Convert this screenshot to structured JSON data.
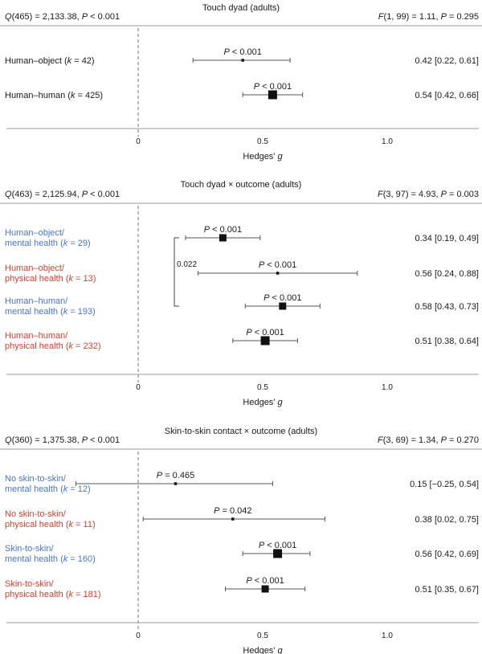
{
  "colors": {
    "black": "#1a1a1a",
    "blue": "#4a74c8",
    "red": "#d23f2e",
    "rule": "#999999",
    "whisker": "#555555"
  },
  "chart_data": [
    {
      "type": "forest",
      "title": "Touch dyad (adults)",
      "left_stat": [
        "Q(465) = 2,133.38, P < 0.001"
      ],
      "right_stat": [
        "F(1, 99) = 1.11, P = 0.295"
      ],
      "xlabel": "Hedges' g",
      "xlim": [
        -0.55,
        1.38
      ],
      "ticks": [
        0,
        0.5,
        1.0
      ],
      "tick_labels": [
        "0",
        "0.5",
        "1.0"
      ],
      "rows": [
        {
          "label": [
            "Human–object (k = 42)"
          ],
          "color": "black",
          "estimate": 0.42,
          "lower": 0.22,
          "upper": 0.61,
          "p": "P < 0.001",
          "ci_text": "0.42 [0.22, 0.61]",
          "marker": "small"
        },
        {
          "label": [
            "Human–human (k = 425)"
          ],
          "color": "black",
          "estimate": 0.54,
          "lower": 0.42,
          "upper": 0.66,
          "p": "P < 0.001",
          "ci_text": "0.54 [0.42, 0.66]",
          "marker": "large"
        }
      ]
    },
    {
      "type": "forest",
      "title": "Touch dyad × outcome (adults)",
      "left_stat": [
        "Q(463) = 2,125.94, P < 0.001"
      ],
      "right_stat": [
        "F(3, 97) = 4.93, P = 0.003"
      ],
      "xlabel": "Hedges' g",
      "xlim": [
        -0.55,
        1.38
      ],
      "ticks": [
        0,
        0.5,
        1.0
      ],
      "tick_labels": [
        "0",
        "0.5",
        "1.0"
      ],
      "bracket_label": "0.022",
      "rows": [
        {
          "label": [
            "Human–object/",
            "mental health (k = 29)"
          ],
          "color": "blue",
          "estimate": 0.34,
          "lower": 0.19,
          "upper": 0.49,
          "p": "P < 0.001",
          "ci_text": "0.34 [0.19, 0.49]",
          "marker": "medium"
        },
        {
          "label": [
            "Human–object/",
            "physical health (k = 13)"
          ],
          "color": "red",
          "estimate": 0.56,
          "lower": 0.24,
          "upper": 0.88,
          "p": "P < 0.001",
          "ci_text": "0.56 [0.24, 0.88]",
          "marker": "small"
        },
        {
          "label": [
            "Human–human/",
            "mental health (k = 193)"
          ],
          "color": "blue",
          "estimate": 0.58,
          "lower": 0.43,
          "upper": 0.73,
          "p": "P < 0.001",
          "ci_text": "0.58 [0.43, 0.73]",
          "marker": "medium"
        },
        {
          "label": [
            "Human–human/",
            "physical health (k = 232)"
          ],
          "color": "red",
          "estimate": 0.51,
          "lower": 0.38,
          "upper": 0.64,
          "p": "P < 0.001",
          "ci_text": "0.51 [0.38, 0.64]",
          "marker": "large"
        }
      ]
    },
    {
      "type": "forest",
      "title": "Skin-to-skin contact × outcome (adults)",
      "left_stat": [
        "Q(360) = 1,375.38, P < 0.001"
      ],
      "right_stat": [
        "F(3, 69) = 1.34, P = 0.270"
      ],
      "xlabel": "Hedges' g",
      "xlim": [
        -0.55,
        1.38
      ],
      "ticks": [
        0,
        0.5,
        1.0
      ],
      "tick_labels": [
        "0",
        "0.5",
        "1.0"
      ],
      "rows": [
        {
          "label": [
            "No skin-to-skin/",
            "mental health (k = 12)"
          ],
          "color": "blue",
          "estimate": 0.15,
          "lower": -0.25,
          "upper": 0.54,
          "p": "P = 0.465",
          "ci_text": "0.15 [−0.25, 0.54]",
          "marker": "small"
        },
        {
          "label": [
            "No skin-to-skin/",
            "physical health (k = 11)"
          ],
          "color": "red",
          "estimate": 0.38,
          "lower": 0.02,
          "upper": 0.75,
          "p": "P = 0.042",
          "ci_text": "0.38 [0.02, 0.75]",
          "marker": "small"
        },
        {
          "label": [
            "Skin-to-skin/",
            "mental health (k = 160)"
          ],
          "color": "blue",
          "estimate": 0.56,
          "lower": 0.42,
          "upper": 0.69,
          "p": "P < 0.001",
          "ci_text": "0.56 [0.42, 0.69]",
          "marker": "large"
        },
        {
          "label": [
            "Skin-to-skin/",
            "physical health (k = 181)"
          ],
          "color": "red",
          "estimate": 0.51,
          "lower": 0.35,
          "upper": 0.67,
          "p": "P < 0.001",
          "ci_text": "0.51 [0.35, 0.67]",
          "marker": "medium"
        }
      ]
    }
  ]
}
